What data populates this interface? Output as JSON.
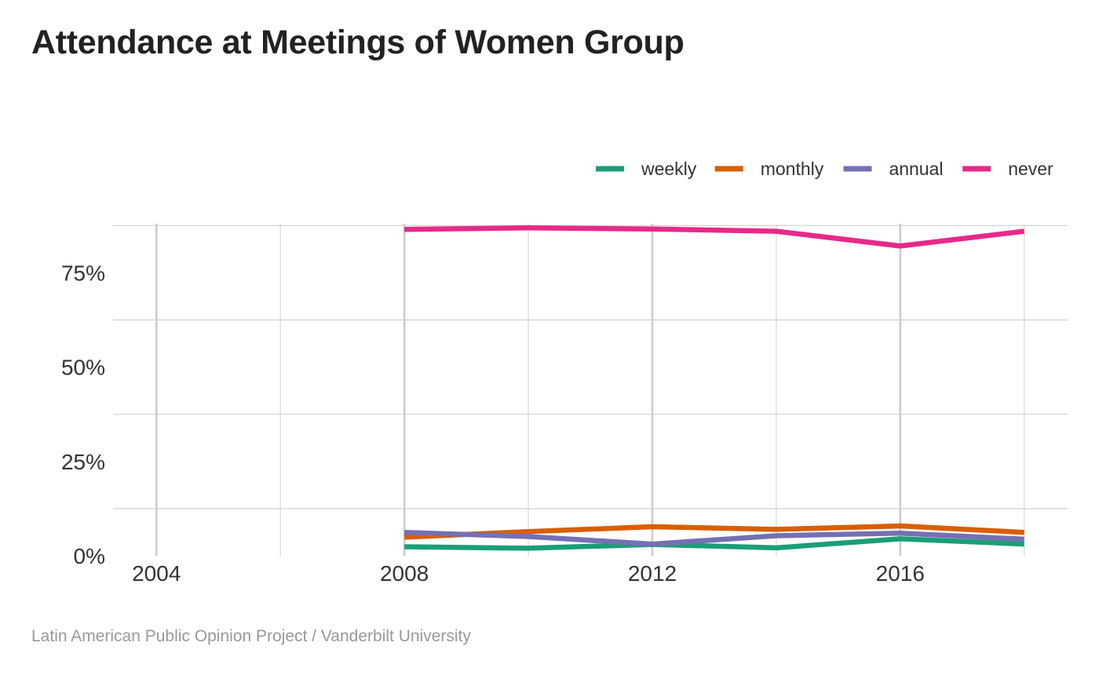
{
  "chart_data": {
    "type": "line",
    "title": "Attendance at Meetings of Women Group",
    "xlabel": "",
    "ylabel": "",
    "x": [
      2008,
      2010,
      2012,
      2014,
      2016,
      2018
    ],
    "xlim": [
      2003.3,
      2018.7
    ],
    "ylim": [
      0,
      88
    ],
    "x_ticks": [
      2004,
      2008,
      2012,
      2016
    ],
    "y_ticks": [
      0,
      25,
      50,
      75
    ],
    "y_tick_labels": [
      "0%",
      "25%",
      "50%",
      "75%"
    ],
    "grid": true,
    "legend_position": "top-right",
    "series": [
      {
        "name": "weekly",
        "color": "#1b9e77",
        "values": [
          2.4,
          2.0,
          3.0,
          2.1,
          4.5,
          3.1
        ]
      },
      {
        "name": "monthly",
        "color": "#d95f02",
        "values": [
          4.9,
          6.4,
          7.7,
          7.0,
          7.9,
          6.2
        ]
      },
      {
        "name": "annual",
        "color": "#7570b3",
        "values": [
          6.2,
          5.1,
          3.1,
          5.3,
          6.0,
          4.4
        ]
      },
      {
        "name": "never",
        "color": "#e7298a",
        "values": [
          86.5,
          86.9,
          86.6,
          86.0,
          82.1,
          86.0
        ]
      }
    ]
  },
  "caption": "Latin American Public Opinion Project / Vanderbilt University"
}
